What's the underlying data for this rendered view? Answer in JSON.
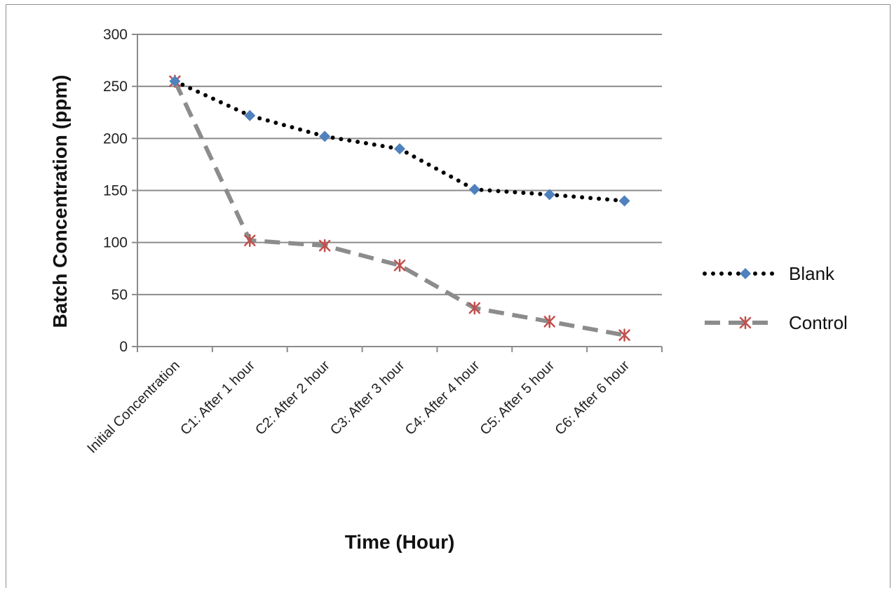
{
  "chart_data": {
    "type": "line",
    "title": "",
    "xlabel": "Time (Hour)",
    "ylabel": "Batch Concentration (ppm)",
    "categories": [
      "Initial Concentration",
      "C1: After 1 hour",
      "C2: After 2 hour",
      "C3: After 3 hour",
      "C4: After 4 hour",
      "C5: After 5 hour",
      "C6: After 6 hour"
    ],
    "ylim": [
      0,
      300
    ],
    "yticks": [
      0,
      50,
      100,
      150,
      200,
      250,
      300
    ],
    "grid": "horizontal",
    "legend_position": "right",
    "series": [
      {
        "name": "Blank",
        "values": [
          255,
          222,
          202,
          190,
          151,
          146,
          140
        ],
        "line_color": "#000000",
        "marker_color": "#4f81bd",
        "line_style": "dotted",
        "marker": "diamond"
      },
      {
        "name": "Control",
        "values": [
          255,
          102,
          97,
          78,
          37,
          24,
          11
        ],
        "line_color": "#8c8c8c",
        "marker_color": "#c0504d",
        "line_style": "dashed",
        "marker": "star"
      }
    ]
  }
}
